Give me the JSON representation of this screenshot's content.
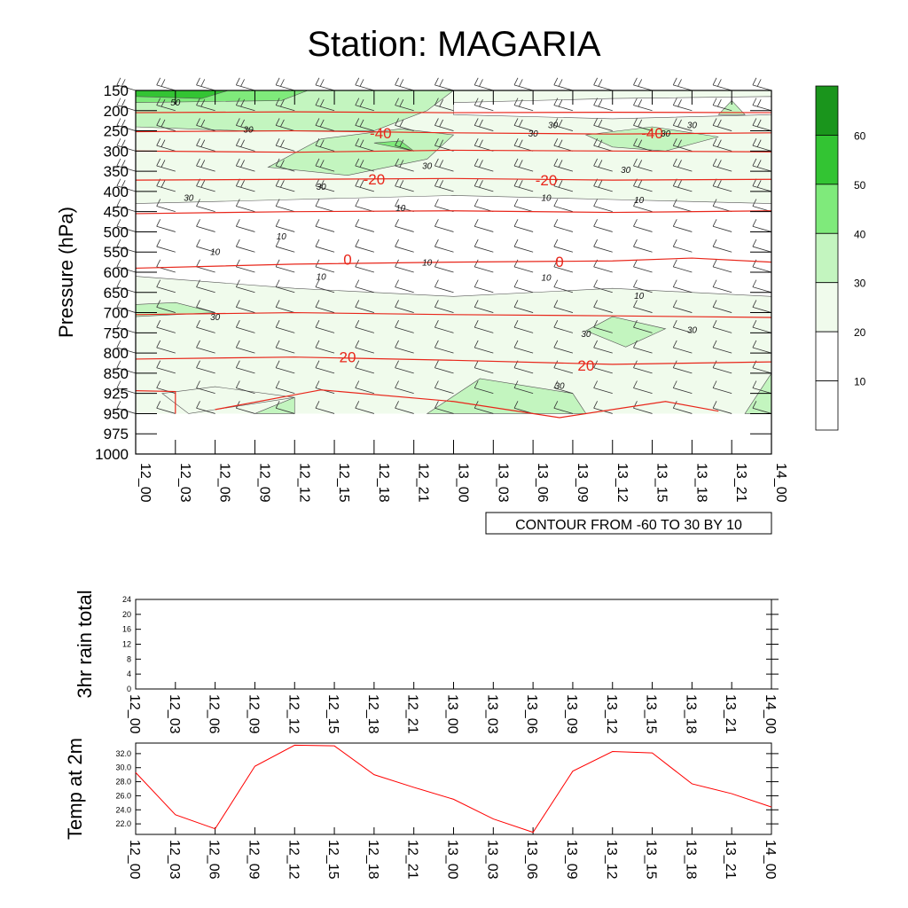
{
  "title": "Station: MAGARIA",
  "time_labels": [
    "12_00",
    "12_03",
    "12_06",
    "12_09",
    "12_12",
    "12_15",
    "12_18",
    "12_21",
    "13_00",
    "13_03",
    "13_06",
    "13_09",
    "13_12",
    "13_15",
    "13_18",
    "13_21",
    "14_00"
  ],
  "chart_data": [
    {
      "type": "contour",
      "name": "cross-section",
      "ylabel": "Pressure (hPa)",
      "pressure_ticks": [
        150,
        200,
        250,
        300,
        350,
        400,
        450,
        500,
        550,
        600,
        650,
        700,
        750,
        800,
        850,
        925,
        950,
        975,
        1000
      ],
      "contour_info": "CONTOUR FROM -60 TO 30 BY 10",
      "temperature_labels": [
        {
          "text": "-40",
          "time": 18.5,
          "p": 255
        },
        {
          "text": "-40",
          "time": 39,
          "p": 255
        },
        {
          "text": "-20",
          "time": 18,
          "p": 370
        },
        {
          "text": "-20",
          "time": 31,
          "p": 372
        },
        {
          "text": "0",
          "time": 16,
          "p": 568
        },
        {
          "text": "0",
          "time": 32,
          "p": 574
        },
        {
          "text": "20",
          "time": 16,
          "p": 810
        },
        {
          "text": "20",
          "time": 34,
          "p": 830
        }
      ],
      "wind_speed_labels": [
        {
          "text": "50",
          "time": 3,
          "p": 178
        },
        {
          "text": "30",
          "time": 8.5,
          "p": 245
        },
        {
          "text": "30",
          "time": 31.5,
          "p": 235
        },
        {
          "text": "30",
          "time": 30,
          "p": 255
        },
        {
          "text": "30",
          "time": 40,
          "p": 255
        },
        {
          "text": "30",
          "time": 42,
          "p": 235
        },
        {
          "text": "30",
          "time": 22,
          "p": 335
        },
        {
          "text": "30",
          "time": 37,
          "p": 345
        },
        {
          "text": "30",
          "time": 14,
          "p": 387
        },
        {
          "text": "30",
          "time": 4,
          "p": 415
        },
        {
          "text": "10",
          "time": 20,
          "p": 440
        },
        {
          "text": "10",
          "time": 31,
          "p": 415
        },
        {
          "text": "10",
          "time": 38,
          "p": 420
        },
        {
          "text": "10",
          "time": 11,
          "p": 510
        },
        {
          "text": "10",
          "time": 6,
          "p": 548
        },
        {
          "text": "10",
          "time": 22,
          "p": 575
        },
        {
          "text": "10",
          "time": 14,
          "p": 610
        },
        {
          "text": "10",
          "time": 31,
          "p": 612
        },
        {
          "text": "10",
          "time": 38,
          "p": 657
        },
        {
          "text": "30",
          "time": 6,
          "p": 710
        },
        {
          "text": "30",
          "time": 34,
          "p": 752
        },
        {
          "text": "30",
          "time": 42,
          "p": 742
        },
        {
          "text": "30",
          "time": 32,
          "p": 895
        }
      ],
      "colorbar": {
        "levels": [
          10,
          20,
          30,
          40,
          50,
          60
        ],
        "colors": [
          "#ffffff",
          "#ffffff",
          "#f0fbec",
          "#c3f5bf",
          "#7fea7b",
          "#33c433",
          "#1a951c"
        ]
      }
    },
    {
      "type": "line",
      "name": "rain",
      "ylabel": "3hr rain total",
      "yticks": [
        0,
        4,
        8,
        12,
        16,
        20,
        24
      ],
      "ylim": [
        0,
        24
      ],
      "x": [
        0,
        3,
        6,
        9,
        12,
        15,
        18,
        21,
        24,
        27,
        30,
        33,
        36,
        39,
        42,
        45,
        48
      ],
      "values": [
        0,
        0,
        0,
        0,
        0,
        0,
        0,
        0,
        0,
        0,
        0,
        0,
        0,
        0,
        0,
        0,
        0
      ]
    },
    {
      "type": "line",
      "name": "temp",
      "ylabel": "Temp at 2m",
      "ytick_labels": [
        "22.0",
        "24.0",
        "26.0",
        "28.0",
        "30.0",
        "32.0"
      ],
      "ylim": [
        20.5,
        33.5
      ],
      "x": [
        0,
        3,
        6,
        9,
        12,
        15,
        18,
        21,
        24,
        27,
        30,
        33,
        36,
        39,
        42,
        45,
        48
      ],
      "values": [
        29.3,
        23.3,
        21.3,
        30.2,
        33.2,
        33.1,
        29.0,
        27.2,
        25.5,
        22.7,
        20.8,
        29.5,
        32.3,
        32.1,
        27.7,
        26.3,
        24.4
      ],
      "color": "#ff0000"
    }
  ]
}
